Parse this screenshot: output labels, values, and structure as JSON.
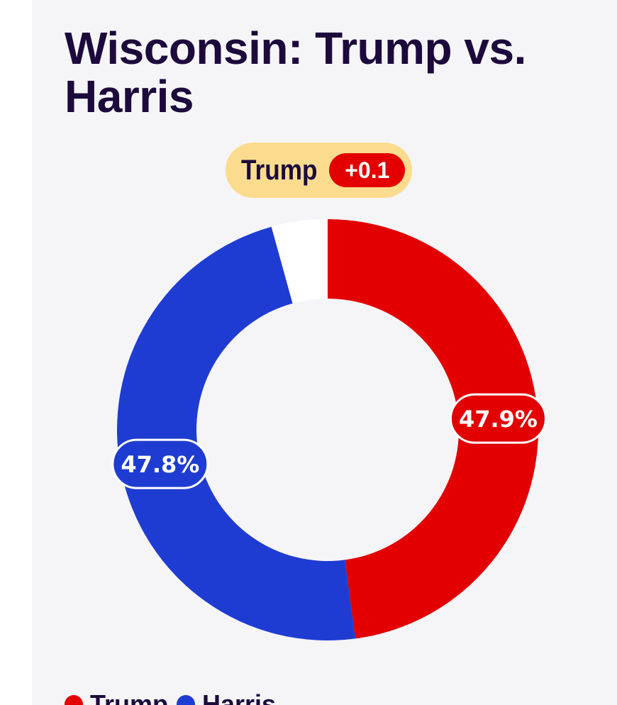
{
  "title": "Wisconsin: Trump vs. Harris",
  "leader": {
    "name": "Trump",
    "margin": "+0.1"
  },
  "colors": {
    "trump": "#e20000",
    "harris": "#1f3cd2",
    "remainder": "#ffffff",
    "leader_pill": "#fbdc8e",
    "title": "#1c0a3c"
  },
  "chart_data": {
    "type": "pie",
    "variant": "donut",
    "slices": [
      {
        "name": "Trump",
        "value": 47.9,
        "label": "47.9%",
        "color": "#e20000"
      },
      {
        "name": "Harris",
        "value": 47.8,
        "label": "47.8%",
        "color": "#1f3cd2"
      },
      {
        "name": "",
        "value": 4.3,
        "label": "",
        "color": "#ffffff"
      }
    ],
    "start": "top",
    "direction": "clockwise",
    "legend": {
      "placement": "bottom-left",
      "entries": [
        "Trump",
        "Harris"
      ]
    }
  }
}
